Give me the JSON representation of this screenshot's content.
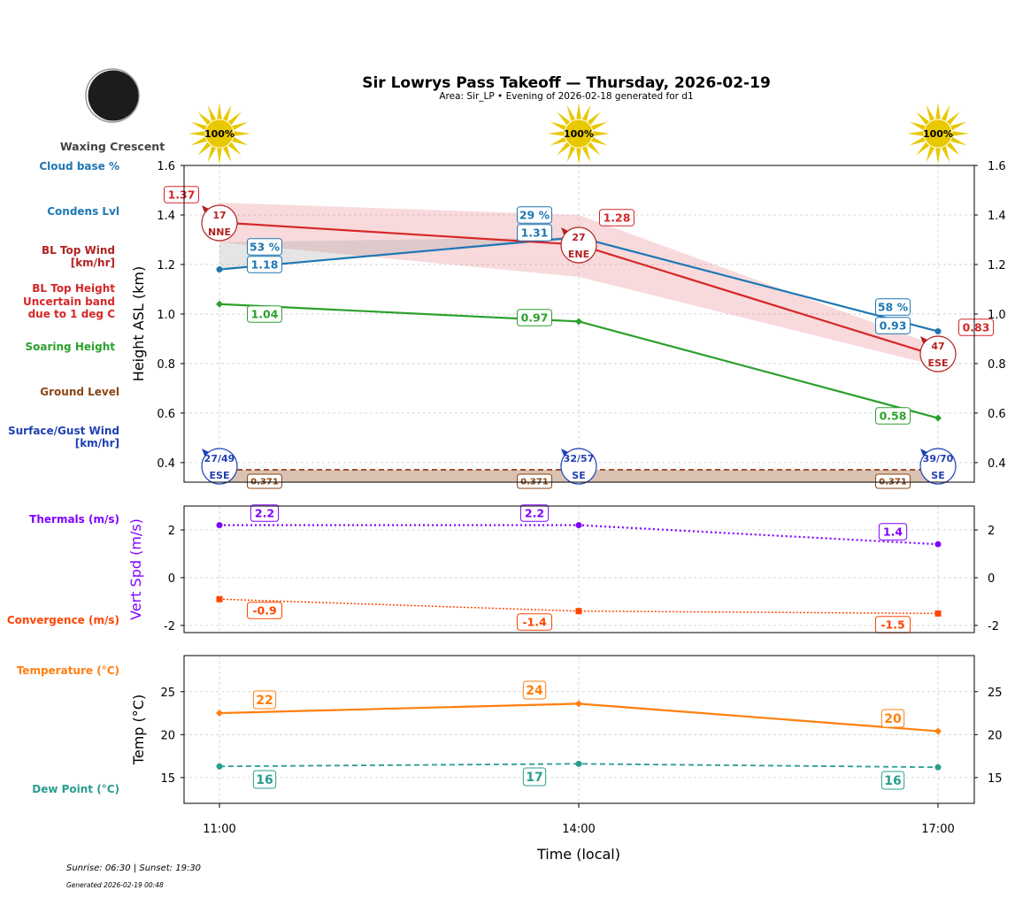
{
  "title": "Sir Lowrys Pass Takeoff — Thursday, 2026-02-19",
  "subtitle": "Area: Sir_LP • Evening of 2026-02-18 generated for d1",
  "moon_phase": "Waxing Crescent",
  "sun_info": "Sunrise: 06:30 | Sunset: 19:30",
  "generated": "Generated 2026-02-19 00:48",
  "colors": {
    "cloud": "#1f77b4",
    "bl_top": "#d62728",
    "bl_wind": "#b22222",
    "soaring": "#2ca02c",
    "ground": "#8b4513",
    "surface_wind": "#1f3fb4",
    "thermals": "#7f00ff",
    "convergence": "#ff4500",
    "temperature": "#ff7f0e",
    "dew_point": "#2a9d8f",
    "sun": "#e8c800"
  },
  "row_labels": [
    {
      "text": "Cloud base %",
      "color": "#1f77b4"
    },
    {
      "text": "Condens Lvl",
      "color": "#1f77b4"
    },
    {
      "text": "BL Top Wind\n[km/hr]",
      "color": "#b22222"
    },
    {
      "text": "BL Top Height\nUncertain band\ndue to 1 deg C",
      "color": "#d62728"
    },
    {
      "text": "Soaring Height",
      "color": "#2ca02c"
    },
    {
      "text": "Ground Level",
      "color": "#8b4513"
    },
    {
      "text": "Surface/Gust Wind\n[km/hr]",
      "color": "#1f3fb4"
    },
    {
      "text": "Thermals (m/s)",
      "color": "#7f00ff"
    },
    {
      "text": "Convergence (m/s)",
      "color": "#ff4500"
    },
    {
      "text": "Temperature (°C)",
      "color": "#ff7f0e"
    },
    {
      "text": "Dew Point (°C)",
      "color": "#2a9d8f"
    }
  ],
  "chart_data": [
    {
      "type": "line",
      "ylabel": "Height ASL (km)",
      "ylim": [
        0.321,
        1.6
      ],
      "yticks": [
        "0.4",
        "0.6",
        "0.8",
        "1.0",
        "1.2",
        "1.4",
        "1.6"
      ],
      "grid": true,
      "x": [
        "11:00",
        "14:00",
        "17:00"
      ],
      "sun_percent": [
        "100%",
        "100%",
        "100%"
      ],
      "series": {
        "condens_lvl": {
          "values": [
            1.18,
            1.31,
            0.93
          ],
          "labels": [
            "1.18",
            "1.31",
            "0.93"
          ]
        },
        "cloud_base_pct": {
          "labels": [
            "53 %",
            "29 %",
            "58 %"
          ]
        },
        "bl_top": {
          "values": [
            1.37,
            1.28,
            0.83
          ],
          "labels": [
            "1.37",
            "1.28",
            "0.83"
          ],
          "band_upper": [
            1.45,
            1.4,
            0.87
          ],
          "band_lower": [
            1.29,
            1.15,
            0.79
          ]
        },
        "bl_top_wind": [
          {
            "speed": "17",
            "dir": "NNE"
          },
          {
            "speed": "27",
            "dir": "ENE"
          },
          {
            "speed": "47",
            "dir": "ESE"
          }
        ],
        "soaring": {
          "values": [
            1.04,
            0.97,
            0.58
          ],
          "labels": [
            "1.04",
            "0.97",
            "0.58"
          ]
        },
        "ground": {
          "values": [
            0.371,
            0.371,
            0.371
          ],
          "labels": [
            "0.371",
            "0.371",
            "0.371"
          ]
        },
        "surface_wind": [
          {
            "speed": "27/49",
            "dir": "ESE"
          },
          {
            "speed": "32/57",
            "dir": "SE"
          },
          {
            "speed": "39/70",
            "dir": "SE"
          }
        ]
      }
    },
    {
      "type": "line",
      "ylabel": "Vert Spd (m/s)",
      "ylim": [
        -2.3,
        3.0
      ],
      "yticks": [
        "-2",
        "0",
        "2"
      ],
      "grid": true,
      "x": [
        "11:00",
        "14:00",
        "17:00"
      ],
      "series": {
        "thermals": {
          "values": [
            2.2,
            2.2,
            1.4
          ],
          "labels": [
            "2.2",
            "2.2",
            "1.4"
          ]
        },
        "convergence": {
          "values": [
            -0.9,
            -1.4,
            -1.5
          ],
          "labels": [
            "-0.9",
            "-1.4",
            "-1.5"
          ]
        }
      }
    },
    {
      "type": "line",
      "ylabel": "Temp (°C)",
      "xlabel": "Time (local)",
      "ylim": [
        12.0,
        29.2
      ],
      "yticks": [
        "15",
        "20",
        "25"
      ],
      "grid": true,
      "x": [
        "11:00",
        "14:00",
        "17:00"
      ],
      "series": {
        "temperature": {
          "values": [
            22.5,
            23.6,
            20.4
          ],
          "labels": [
            "22",
            "24",
            "20"
          ]
        },
        "dew_point": {
          "values": [
            16.3,
            16.6,
            16.2
          ],
          "labels": [
            "16",
            "17",
            "16"
          ]
        }
      }
    }
  ]
}
